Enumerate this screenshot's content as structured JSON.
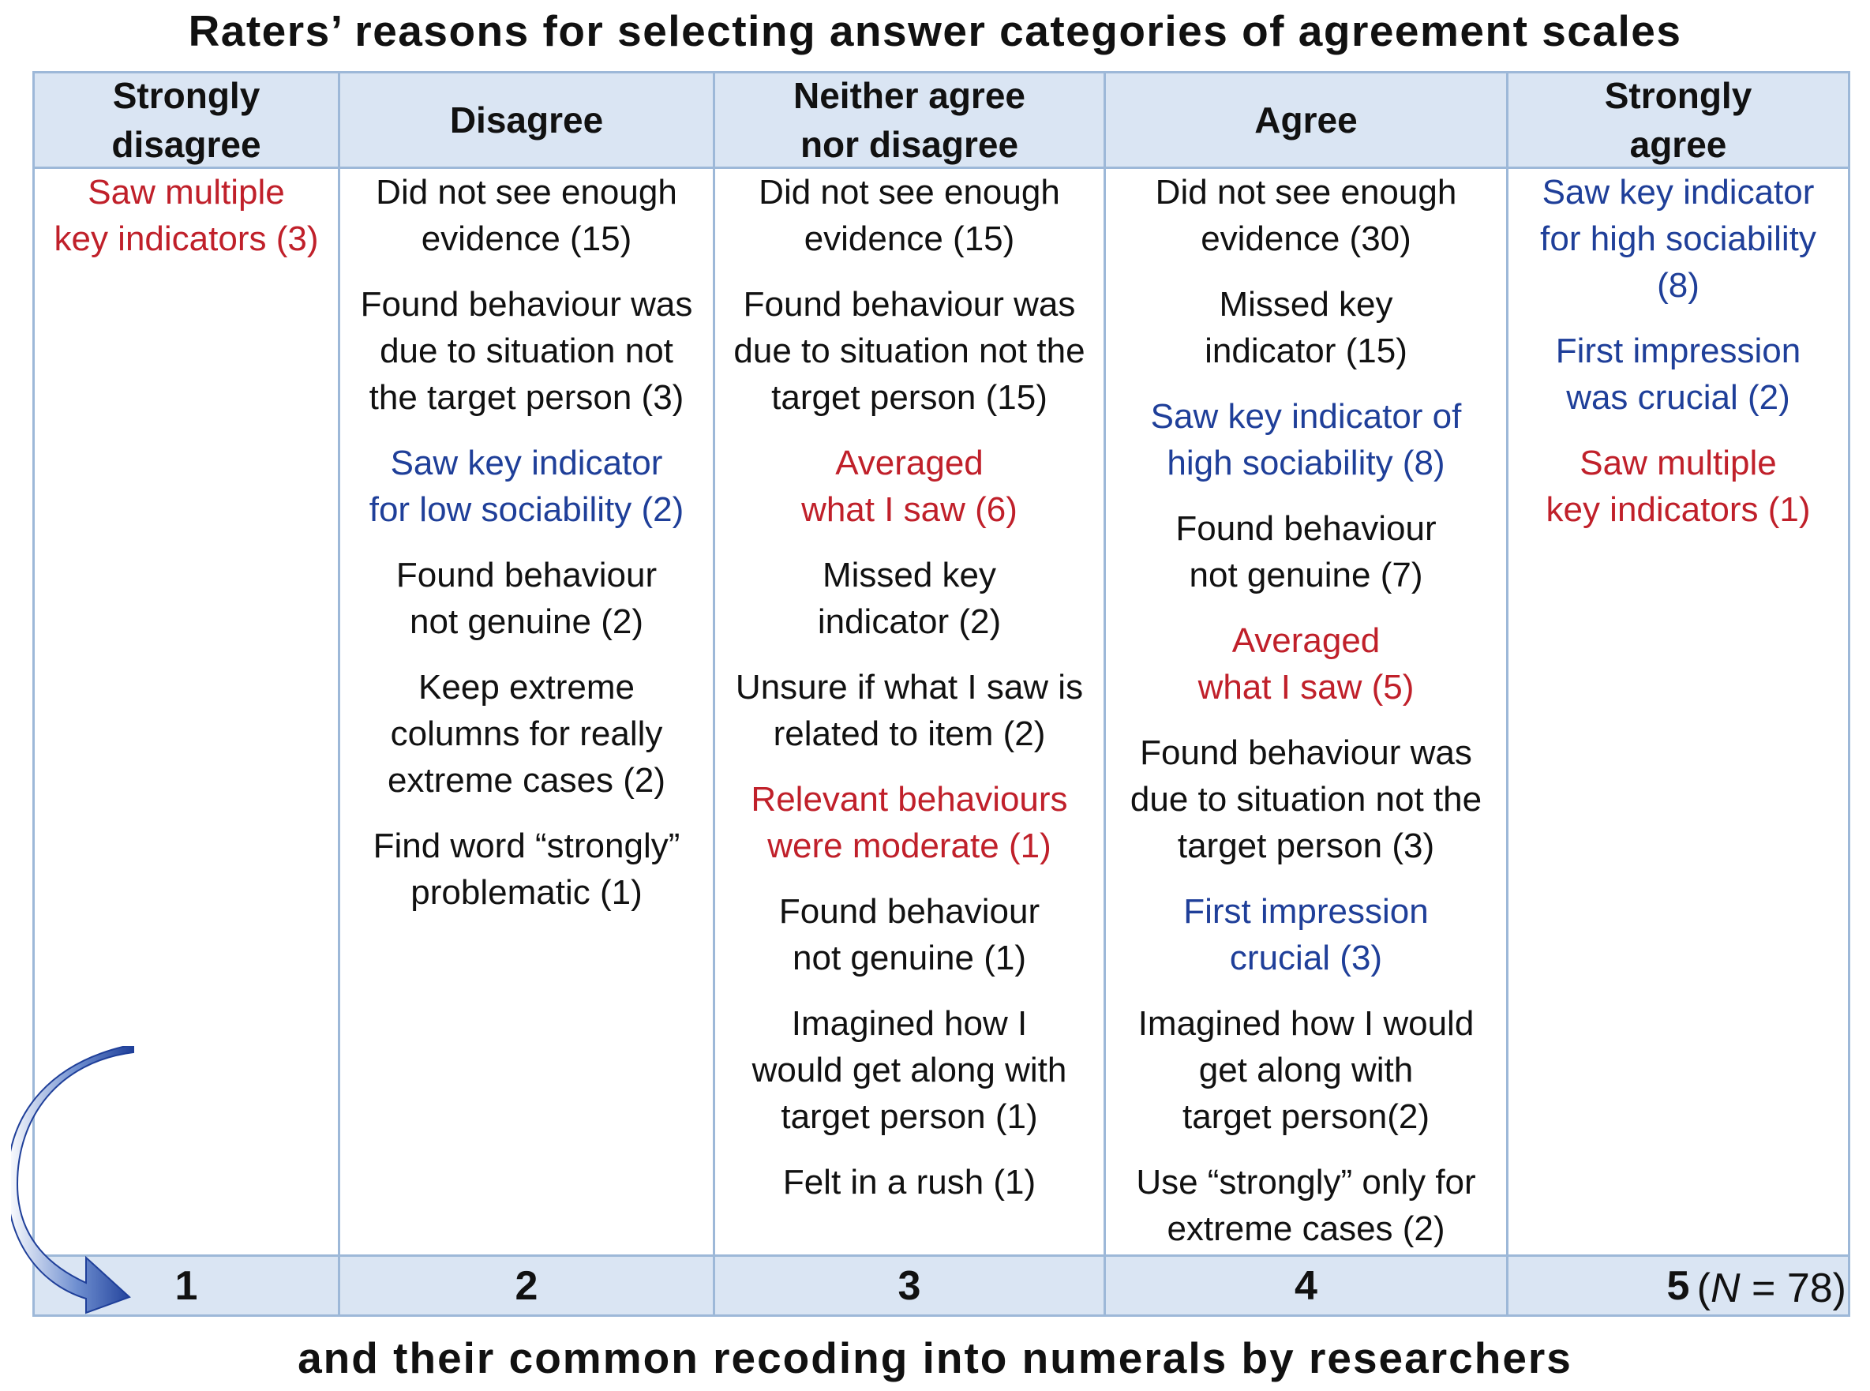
{
  "title": "Raters’ reasons for selecting answer categories of agreement scales",
  "subtitle": "and their common recoding into numerals by researchers",
  "sample_size_label": "N",
  "sample_size_value": "= 78)",
  "sample_size_open": "(",
  "colors": {
    "black": "#111111",
    "red": "#c0202a",
    "blue": "#1f3f99",
    "header_bg": "#dae5f3",
    "border": "#9db8d8",
    "arrow": "#1f3f99"
  },
  "columns": [
    {
      "header": "Strongly\ndisagree",
      "numeral": "1",
      "reasons": [
        {
          "text": "Saw multiple\nkey indicators (3)",
          "color": "red"
        }
      ]
    },
    {
      "header": "Disagree",
      "numeral": "2",
      "reasons": [
        {
          "text": "Did not see enough\nevidence (15)",
          "color": "black"
        },
        {
          "text": "Found behaviour was\ndue to situation not\nthe target person (3)",
          "color": "black"
        },
        {
          "text": "Saw key indicator\nfor low sociability (2)",
          "color": "blue"
        },
        {
          "text": "Found behaviour\nnot genuine (2)",
          "color": "black"
        },
        {
          "text": "Keep extreme\ncolumns for really\nextreme cases (2)",
          "color": "black"
        },
        {
          "text": "Find word “strongly”\nproblematic (1)",
          "color": "black"
        }
      ]
    },
    {
      "header": "Neither agree\nnor disagree",
      "numeral": "3",
      "reasons": [
        {
          "text": "Did not see enough\nevidence (15)",
          "color": "black"
        },
        {
          "text": "Found behaviour was\ndue to situation not the\ntarget person (15)",
          "color": "black"
        },
        {
          "text": "Averaged\nwhat I saw (6)",
          "color": "red"
        },
        {
          "text": "Missed key\nindicator (2)",
          "color": "black"
        },
        {
          "text": "Unsure if what I saw is\nrelated to item (2)",
          "color": "black"
        },
        {
          "text": "Relevant behaviours\nwere moderate (1)",
          "color": "red"
        },
        {
          "text": "Found behaviour\nnot genuine (1)",
          "color": "black"
        },
        {
          "text": "Imagined how I\nwould get along with\ntarget person (1)",
          "color": "black"
        },
        {
          "text": "Felt in a rush (1)",
          "color": "black"
        }
      ]
    },
    {
      "header": "Agree",
      "numeral": "4",
      "reasons": [
        {
          "text": "Did not see enough\nevidence (30)",
          "color": "black"
        },
        {
          "text": "Missed key\nindicator (15)",
          "color": "black"
        },
        {
          "text": "Saw key indicator of\nhigh sociability (8)",
          "color": "blue"
        },
        {
          "text": "Found behaviour\nnot genuine (7)",
          "color": "black"
        },
        {
          "text": "Averaged\nwhat I saw (5)",
          "color": "red"
        },
        {
          "text": "Found behaviour was\ndue to situation not the\ntarget person (3)",
          "color": "black"
        },
        {
          "text": "First impression\ncrucial (3)",
          "color": "blue"
        },
        {
          "text": "Imagined how I would\nget along with\ntarget person(2)",
          "color": "black"
        },
        {
          "text": "Use “strongly” only for\nextreme cases (2)",
          "color": "black"
        }
      ]
    },
    {
      "header": "Strongly\nagree",
      "numeral": "5",
      "reasons": [
        {
          "text": "Saw key indicator\nfor high sociability\n(8)",
          "color": "blue"
        },
        {
          "text": "First impression\nwas crucial (2)",
          "color": "blue"
        },
        {
          "text": "Saw multiple\nkey indicators (1)",
          "color": "red"
        }
      ]
    }
  ]
}
